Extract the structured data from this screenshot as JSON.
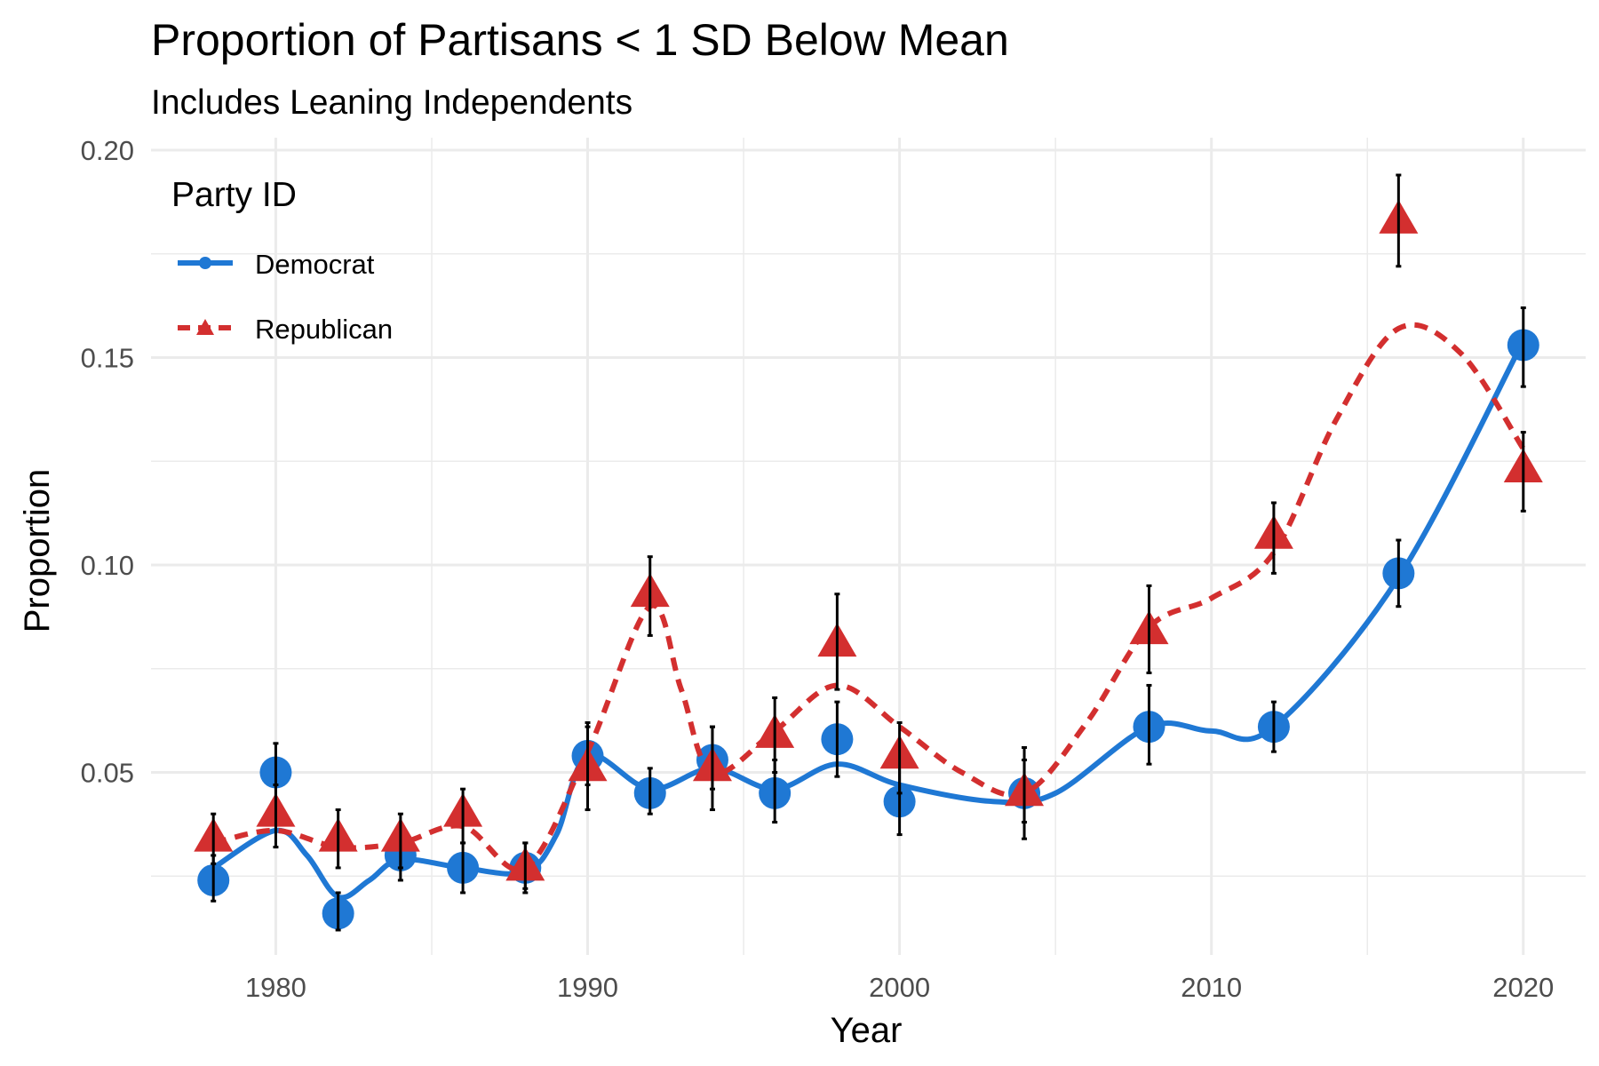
{
  "chart_data": {
    "type": "line",
    "title": "Proportion of Partisans < 1 SD Below Mean",
    "subtitle": "Includes Leaning Independents",
    "xlabel": "Year",
    "ylabel": "Proportion",
    "xlim": [
      1976,
      2022
    ],
    "ylim": [
      0.006,
      0.203
    ],
    "x_ticks": [
      1980,
      1990,
      2000,
      2010,
      2020
    ],
    "y_ticks": [
      0.05,
      0.1,
      0.15,
      0.2
    ],
    "y_tick_labels": [
      "0.05",
      "0.10",
      "0.15",
      "0.20"
    ],
    "grid": true,
    "legend": {
      "title": "Party ID",
      "position": "top-left",
      "entries": [
        "Democrat",
        "Republican"
      ]
    },
    "series": [
      {
        "name": "Democrat",
        "color": "#1f78d4",
        "marker": "circle",
        "line_style": "solid",
        "x": [
          1978,
          1980,
          1982,
          1984,
          1986,
          1988,
          1990,
          1992,
          1994,
          1996,
          1998,
          2000,
          2004,
          2008,
          2012,
          2016,
          2020
        ],
        "y": [
          0.024,
          0.05,
          0.016,
          0.03,
          0.027,
          0.027,
          0.054,
          0.045,
          0.053,
          0.045,
          0.058,
          0.043,
          0.045,
          0.061,
          0.061,
          0.098,
          0.153
        ],
        "err_low": [
          0.019,
          0.043,
          0.012,
          0.024,
          0.021,
          0.022,
          0.047,
          0.04,
          0.046,
          0.038,
          0.049,
          0.035,
          0.038,
          0.052,
          0.055,
          0.09,
          0.143
        ],
        "err_high": [
          0.03,
          0.057,
          0.021,
          0.037,
          0.033,
          0.033,
          0.061,
          0.051,
          0.061,
          0.053,
          0.067,
          0.052,
          0.053,
          0.071,
          0.067,
          0.106,
          0.162
        ],
        "smooth": [
          [
            1978,
            0.027
          ],
          [
            1980,
            0.036
          ],
          [
            1981,
            0.03
          ],
          [
            1982,
            0.02
          ],
          [
            1983,
            0.024
          ],
          [
            1984,
            0.029
          ],
          [
            1986,
            0.027
          ],
          [
            1988,
            0.026
          ],
          [
            1989,
            0.035
          ],
          [
            1990,
            0.054
          ],
          [
            1992,
            0.046
          ],
          [
            1994,
            0.051
          ],
          [
            1996,
            0.046
          ],
          [
            1998,
            0.052
          ],
          [
            2000,
            0.047
          ],
          [
            2003,
            0.043
          ],
          [
            2005,
            0.045
          ],
          [
            2008,
            0.061
          ],
          [
            2010,
            0.06
          ],
          [
            2012,
            0.061
          ],
          [
            2016,
            0.097
          ],
          [
            2020,
            0.154
          ]
        ]
      },
      {
        "name": "Republican",
        "color": "#d32f2f",
        "marker": "triangle",
        "line_style": "dashed",
        "x": [
          1978,
          1980,
          1982,
          1984,
          1986,
          1988,
          1990,
          1992,
          1994,
          1996,
          1998,
          2000,
          2004,
          2008,
          2012,
          2016,
          2020
        ],
        "y": [
          0.034,
          0.04,
          0.034,
          0.034,
          0.04,
          0.027,
          0.051,
          0.093,
          0.051,
          0.059,
          0.081,
          0.054,
          0.045,
          0.084,
          0.107,
          0.183,
          0.123
        ],
        "err_low": [
          0.028,
          0.032,
          0.027,
          0.027,
          0.033,
          0.021,
          0.041,
          0.083,
          0.041,
          0.05,
          0.07,
          0.045,
          0.034,
          0.074,
          0.098,
          0.172,
          0.113
        ],
        "err_high": [
          0.04,
          0.047,
          0.041,
          0.04,
          0.046,
          0.033,
          0.062,
          0.102,
          0.061,
          0.068,
          0.093,
          0.062,
          0.056,
          0.095,
          0.115,
          0.194,
          0.132
        ],
        "smooth": [
          [
            1978,
            0.033
          ],
          [
            1980,
            0.036
          ],
          [
            1982,
            0.032
          ],
          [
            1984,
            0.033
          ],
          [
            1986,
            0.037
          ],
          [
            1988,
            0.027
          ],
          [
            1990,
            0.055
          ],
          [
            1992,
            0.09
          ],
          [
            1993,
            0.07
          ],
          [
            1994,
            0.05
          ],
          [
            1996,
            0.06
          ],
          [
            1998,
            0.071
          ],
          [
            2000,
            0.061
          ],
          [
            2002,
            0.05
          ],
          [
            2004,
            0.045
          ],
          [
            2006,
            0.062
          ],
          [
            2008,
            0.085
          ],
          [
            2010,
            0.092
          ],
          [
            2012,
            0.103
          ],
          [
            2014,
            0.135
          ],
          [
            2016,
            0.157
          ],
          [
            2018,
            0.151
          ],
          [
            2020,
            0.128
          ]
        ]
      }
    ]
  }
}
